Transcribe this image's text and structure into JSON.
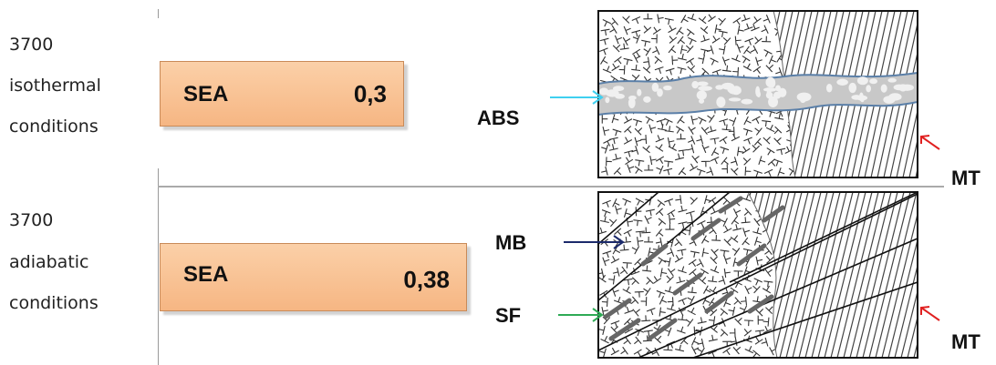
{
  "rows": [
    {
      "temp": "3700",
      "mode": "isothermal",
      "cond": "conditions",
      "box_label": "SEA",
      "box_value": "0,3"
    },
    {
      "temp": "3700",
      "mode": "adiabatic",
      "cond": "conditions",
      "box_label": "SEA",
      "box_value": "0,38"
    }
  ],
  "labels": {
    "abs": "ABS",
    "mt_top": "MT",
    "mb": "MB",
    "sf": "SF",
    "mt_bottom": "MT"
  },
  "colors": {
    "box_fill": "#f8c79a",
    "abs_arrow": "#3fd0f0",
    "mb_arrow": "#1b2a6b",
    "sf_arrow": "#2eaa55",
    "mt_arrow": "#e02020",
    "band_fill": "#c8c8c8"
  }
}
